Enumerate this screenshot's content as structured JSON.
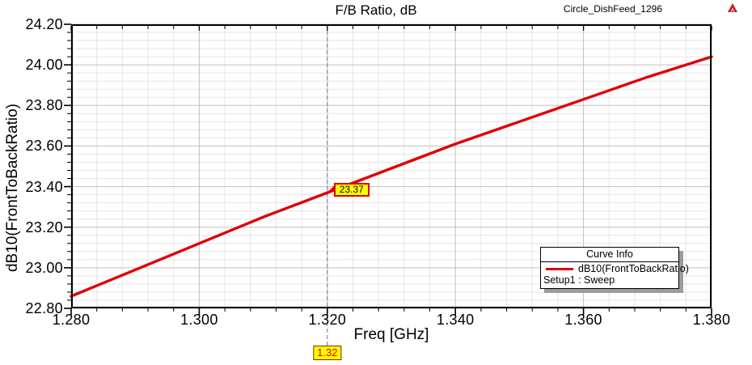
{
  "header": {
    "title": "F/B Ratio, dB",
    "project_label": "Circle_DishFeed_1296",
    "logo_icon": "ansoft-logo-icon",
    "logo_color": "#c41e1e"
  },
  "chart_data": {
    "type": "line",
    "title": "F/B Ratio, dB",
    "xlabel": "Freq [GHz]",
    "ylabel": "dB10(FrontToBackRatio)",
    "xlim": [
      1.28,
      1.38
    ],
    "ylim": [
      22.8,
      24.2
    ],
    "x_major_ticks": [
      1.28,
      1.3,
      1.32,
      1.34,
      1.36,
      1.38
    ],
    "x_tick_labels": [
      "1.280",
      "1.300",
      "1.320",
      "1.340",
      "1.360",
      "1.380"
    ],
    "y_major_ticks": [
      22.8,
      23.0,
      23.2,
      23.4,
      23.6,
      23.8,
      24.0,
      24.2
    ],
    "y_tick_labels": [
      "22.80",
      "23.00",
      "23.20",
      "23.40",
      "23.60",
      "23.80",
      "24.00",
      "24.20"
    ],
    "x_minor_step": 0.004,
    "y_minor_step": 0.04,
    "grid": true,
    "grid_minor_color": "#e6e6e6",
    "grid_major_color": "#c0c0c0",
    "series": [
      {
        "name": "dB10(FrontToBackRatio)",
        "color": "#e00000",
        "x": [
          1.28,
          1.29,
          1.3,
          1.31,
          1.32,
          1.33,
          1.34,
          1.35,
          1.36,
          1.37,
          1.38
        ],
        "y": [
          22.86,
          22.99,
          23.12,
          23.25,
          23.37,
          23.49,
          23.61,
          23.72,
          23.83,
          23.94,
          24.04
        ]
      }
    ],
    "marker": {
      "x": 1.32,
      "y": 23.37,
      "value_label": "23.37",
      "axis_label": "1.32",
      "line_color": "#7a7a7a",
      "box_fill": "#ffff00"
    },
    "legend": {
      "title": "Curve Info",
      "entries": [
        {
          "swatch_color": "#e00000",
          "label": "dB10(FrontToBackRatio)"
        }
      ],
      "note": "Setup1 : Sweep",
      "position": "lower-right"
    }
  }
}
